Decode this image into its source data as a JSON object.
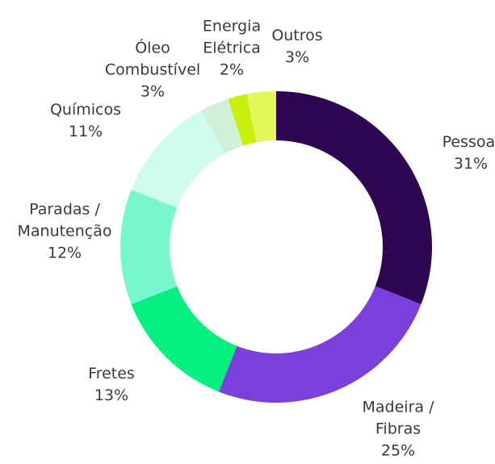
{
  "chart_data": {
    "type": "donut",
    "categories": [
      "Pessoal",
      "Madeira /\nFibras",
      "Fretes",
      "Paradas /\nManutenção",
      "Químicos",
      "Óleo\nCombustível",
      "Energia\nElétrica",
      "Outros"
    ],
    "values": [
      31,
      25,
      13,
      12,
      11,
      3,
      2,
      3
    ],
    "value_labels": [
      "31%",
      "25%",
      "13%",
      "12%",
      "11%",
      "3%",
      "2%",
      "3%"
    ],
    "colors": [
      "#2d0550",
      "#7b3fdc",
      "#05f07f",
      "#78f7cf",
      "#d0fcef",
      "#d0f0d8",
      "#c8ef0e",
      "#e3f75a"
    ]
  }
}
